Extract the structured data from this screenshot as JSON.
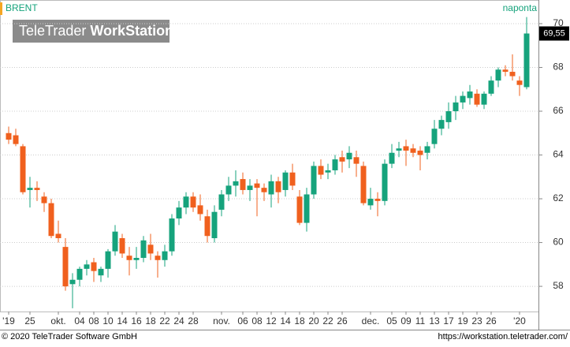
{
  "chart_data": {
    "type": "candlestick",
    "title": "BRENT",
    "interval": "naponta",
    "watermark": {
      "light": "TeleTrader",
      "bold": "WorkStation"
    },
    "categories": [
      "'19",
      null,
      null,
      "25",
      null,
      null,
      null,
      "okt.",
      null,
      null,
      "04",
      null,
      "08",
      null,
      "10",
      null,
      "14",
      null,
      "16",
      null,
      "18",
      null,
      "22",
      null,
      "24",
      null,
      "28",
      null,
      null,
      null,
      "nov.",
      null,
      null,
      "06",
      null,
      "08",
      null,
      "12",
      null,
      "14",
      null,
      "18",
      null,
      "20",
      null,
      "22",
      null,
      "26",
      null,
      null,
      null,
      "dec.",
      null,
      null,
      "05",
      null,
      "09",
      null,
      "11",
      null,
      "13",
      null,
      "17",
      null,
      "19",
      null,
      "23",
      null,
      "26",
      null,
      null,
      null,
      "'20",
      null
    ],
    "open": [
      65.0,
      64.9,
      64.4,
      62.4,
      62.5,
      62.1,
      61.8,
      60.4,
      59.8,
      58.1,
      58.3,
      58.8,
      59.1,
      58.5,
      58.8,
      59.6,
      60.2,
      59.4,
      59.2,
      59.3,
      59.9,
      59.4,
      59.2,
      59.6,
      61.1,
      61.6,
      62.1,
      61.7,
      61.2,
      60.2,
      61.5,
      62.2,
      62.6,
      62.9,
      62.4,
      62.7,
      62.5,
      62.2,
      62.8,
      62.4,
      63.2,
      62.1,
      60.9,
      62.2,
      63.5,
      63.2,
      63.3,
      63.9,
      63.8,
      63.9,
      63.5,
      61.7,
      62.0,
      61.9,
      63.6,
      64.2,
      64.4,
      64.3,
      64.2,
      64.1,
      64.5,
      65.2,
      65.5,
      66.0,
      66.4,
      66.6,
      66.8,
      66.3,
      66.8,
      67.4,
      67.9,
      67.8,
      67.4,
      67.1
    ],
    "high": [
      65.3,
      65.2,
      64.5,
      63.0,
      62.8,
      62.3,
      62.0,
      61.0,
      60.2,
      58.6,
      58.9,
      59.2,
      59.3,
      58.9,
      59.7,
      60.8,
      60.4,
      59.8,
      59.8,
      60.3,
      60.4,
      59.6,
      59.9,
      61.3,
      61.9,
      62.3,
      62.3,
      62.2,
      61.5,
      61.7,
      62.4,
      63.0,
      63.3,
      63.2,
      62.9,
      62.9,
      62.7,
      63.1,
      63.0,
      63.3,
      63.6,
      62.4,
      62.5,
      63.7,
      63.8,
      63.6,
      64.0,
      64.2,
      64.4,
      64.2,
      63.7,
      62.5,
      62.3,
      63.8,
      64.5,
      64.6,
      64.7,
      64.5,
      64.4,
      64.6,
      65.6,
      65.8,
      66.4,
      66.7,
      66.9,
      67.2,
      67.0,
      66.9,
      67.6,
      68.0,
      68.1,
      68.6,
      67.6,
      70.3
    ],
    "low": [
      64.5,
      64.4,
      62.2,
      61.6,
      61.9,
      61.4,
      60.2,
      60.0,
      57.8,
      57.0,
      58.0,
      58.5,
      58.2,
      58.2,
      58.4,
      59.4,
      59.3,
      58.5,
      58.8,
      59.1,
      59.2,
      58.4,
      58.9,
      59.4,
      60.8,
      61.3,
      61.4,
      61.0,
      60.0,
      60.0,
      61.2,
      61.9,
      62.1,
      62.2,
      61.9,
      61.2,
      61.9,
      61.6,
      61.8,
      62.1,
      62.4,
      60.8,
      60.5,
      62.0,
      62.9,
      62.9,
      63.1,
      63.2,
      63.4,
      63.0,
      61.7,
      61.5,
      61.2,
      61.7,
      63.4,
      63.9,
      63.5,
      63.9,
      63.3,
      63.8,
      64.3,
      64.9,
      65.2,
      65.6,
      66.1,
      66.3,
      66.2,
      66.1,
      66.7,
      67.1,
      67.6,
      67.4,
      66.7,
      67.0
    ],
    "close": [
      64.7,
      64.5,
      62.3,
      62.5,
      62.4,
      61.8,
      60.3,
      60.2,
      58.0,
      58.3,
      58.8,
      59.0,
      58.7,
      58.8,
      59.6,
      60.5,
      59.5,
      59.2,
      59.3,
      60.1,
      59.5,
      59.2,
      59.6,
      61.1,
      61.6,
      62.1,
      61.6,
      61.3,
      60.3,
      61.4,
      62.2,
      62.6,
      62.8,
      62.4,
      62.6,
      62.5,
      62.3,
      62.8,
      62.3,
      63.2,
      62.6,
      60.9,
      62.2,
      63.5,
      63.1,
      63.3,
      63.8,
      63.7,
      64.1,
      63.6,
      61.8,
      62.0,
      61.9,
      63.6,
      64.1,
      64.3,
      64.2,
      64.1,
      64.0,
      64.4,
      65.2,
      65.6,
      66.0,
      66.4,
      66.7,
      66.9,
      66.3,
      66.8,
      67.4,
      67.9,
      67.8,
      67.6,
      67.2,
      69.55
    ],
    "up_color": "#16a37c",
    "down_color": "#f0601e",
    "last_price": {
      "value": 69.55,
      "label": "69,55"
    },
    "ylim": [
      56.85,
      71.08
    ],
    "yticks": [
      58,
      60,
      62,
      64,
      66,
      68,
      70
    ],
    "grid": true
  },
  "footer": {
    "copyright": "© 2020 TeleTrader Software GmbH",
    "url": "https://workstation.teletrader.com/"
  }
}
